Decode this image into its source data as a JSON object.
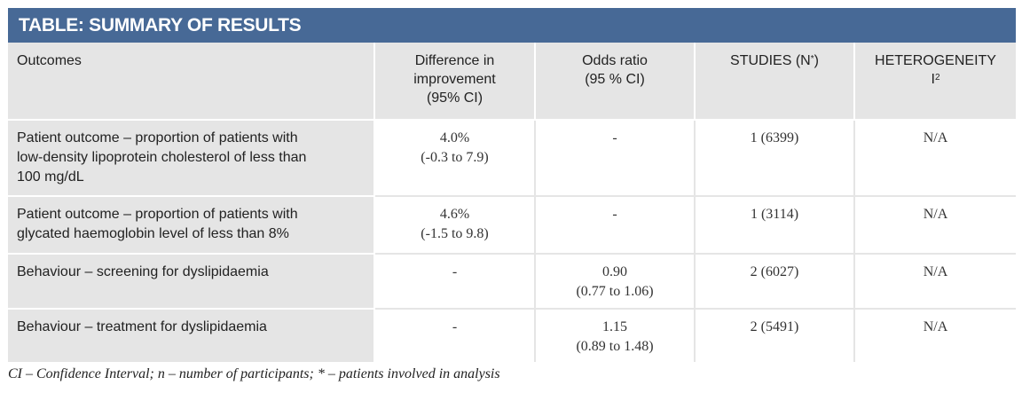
{
  "title": "TABLE: SUMMARY OF RESULTS",
  "headers": {
    "outcomes": "Outcomes",
    "difference": [
      "Difference in",
      "improvement",
      "(95%  CI)"
    ],
    "odds": [
      "Odds ratio",
      "(95 % CI)"
    ],
    "studies_main": "STUDIES (N",
    "studies_sup": "*",
    "studies_end": ")",
    "heterogeneity": "HETEROGENEITY",
    "heterogeneity_i": "I",
    "heterogeneity_sup": "2"
  },
  "rows": [
    {
      "outcome": [
        "Patient outcome – proportion of patients with",
        "low-density lipoprotein cholesterol of less than",
        "100 mg/dL"
      ],
      "difference": [
        "4.0%",
        "(-0.3 to 7.9)"
      ],
      "odds": [
        "-",
        ""
      ],
      "studies": "1 (6399)",
      "heterogeneity": "N/A"
    },
    {
      "outcome": [
        "Patient outcome – proportion of patients with",
        "glycated haemoglobin level of less than 8%",
        ""
      ],
      "difference": [
        "4.6%",
        "(-1.5 to 9.8)"
      ],
      "odds": [
        "-",
        ""
      ],
      "studies": "1 (3114)",
      "heterogeneity": "N/A"
    },
    {
      "outcome": [
        "Behaviour – screening for dyslipidaemia",
        "",
        ""
      ],
      "difference": [
        "-",
        ""
      ],
      "odds": [
        "0.90",
        "(0.77 to 1.06)"
      ],
      "studies": "2 (6027)",
      "heterogeneity": "N/A"
    },
    {
      "outcome": [
        "Behaviour – treatment for dyslipidaemia",
        "",
        ""
      ],
      "difference": [
        "-",
        ""
      ],
      "odds": [
        "1.15",
        "(0.89 to 1.48)"
      ],
      "studies": "2 (5491)",
      "heterogeneity": "N/A"
    }
  ],
  "footnote": "CI – Confidence Interval; n – number of participants; * – patients involved in analysis"
}
